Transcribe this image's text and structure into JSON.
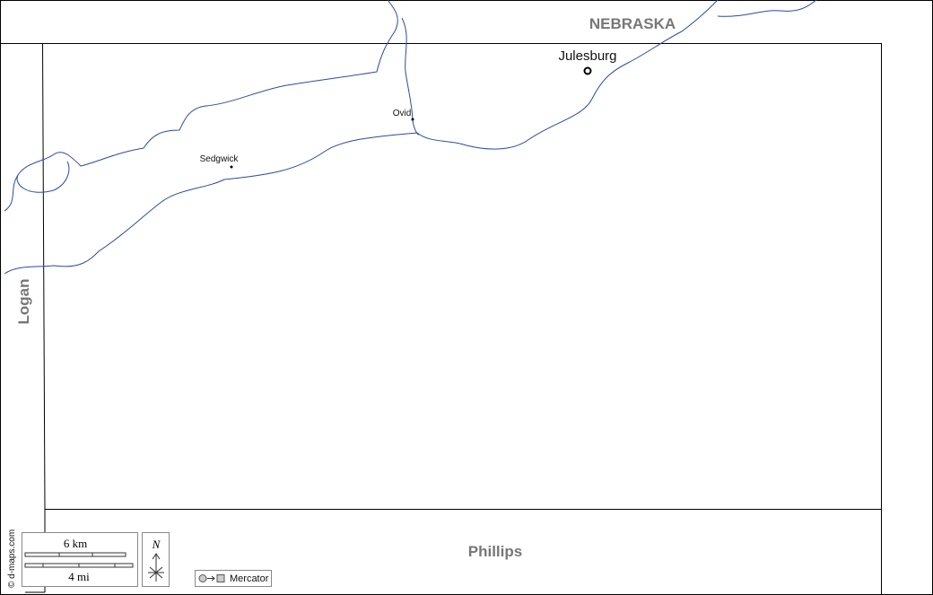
{
  "regions": {
    "north": "NEBRASKA",
    "west": "Logan",
    "south": "Phillips"
  },
  "places": {
    "county_seat": "Julesburg",
    "towns": [
      "Ovid",
      "Sedgwick"
    ]
  },
  "credit": "© d-maps.com",
  "scale": {
    "metric": "6 km",
    "imperial": "4 mi"
  },
  "north_arrow": "N",
  "projection": "Mercator"
}
